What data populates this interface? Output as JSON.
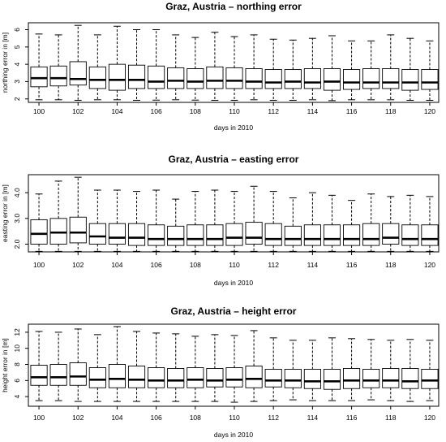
{
  "chart_data": [
    {
      "type": "boxplot",
      "title": "Graz, Austria – northing error",
      "xlabel": "days in 2010",
      "ylabel": "northing error in [m]",
      "ylim": [
        1.8,
        6.4
      ],
      "y_ticks": [
        2,
        3,
        4,
        5,
        6
      ],
      "y_tick_labels": [
        "2",
        "3",
        "4",
        "5",
        "6"
      ],
      "x_tick_labels": [
        "100",
        "102",
        "104",
        "106",
        "108",
        "110",
        "112",
        "114",
        "116",
        "118",
        "120"
      ],
      "categories": [
        100,
        101,
        102,
        103,
        104,
        105,
        106,
        107,
        108,
        109,
        110,
        111,
        112,
        113,
        114,
        115,
        116,
        117,
        118,
        119,
        120
      ],
      "lower_whisker": [
        1.95,
        1.95,
        1.92,
        1.95,
        1.95,
        1.92,
        1.93,
        1.95,
        1.93,
        1.92,
        1.92,
        1.95,
        1.92,
        1.92,
        1.95,
        1.9,
        1.95,
        1.95,
        1.95,
        1.92,
        1.92
      ],
      "q1": [
        2.7,
        2.75,
        2.8,
        2.6,
        2.5,
        2.6,
        2.6,
        2.6,
        2.6,
        2.6,
        2.6,
        2.6,
        2.6,
        2.6,
        2.6,
        2.5,
        2.55,
        2.6,
        2.6,
        2.5,
        2.55
      ],
      "median": [
        3.2,
        3.2,
        3.15,
        3.1,
        3.1,
        3.1,
        3.0,
        3.05,
        3.0,
        3.05,
        3.05,
        3.0,
        2.95,
        3.0,
        2.95,
        3.0,
        2.95,
        2.95,
        2.95,
        2.95,
        2.95
      ],
      "q3": [
        3.85,
        3.9,
        4.15,
        3.85,
        4.0,
        3.95,
        3.9,
        3.8,
        3.75,
        3.85,
        3.8,
        3.75,
        3.7,
        3.7,
        3.75,
        3.75,
        3.7,
        3.75,
        3.75,
        3.7,
        3.7
      ],
      "upper_whisker": [
        5.75,
        5.7,
        6.25,
        5.7,
        6.2,
        6.0,
        6.0,
        5.7,
        5.55,
        5.85,
        5.6,
        5.7,
        5.45,
        5.4,
        5.5,
        5.65,
        5.35,
        5.35,
        5.7,
        5.5,
        5.35
      ]
    },
    {
      "type": "boxplot",
      "title": "Graz, Austria – easting error",
      "xlabel": "days in 2010",
      "ylabel": "easting error in [m]",
      "ylim": [
        1.7,
        4.7
      ],
      "y_ticks": [
        2.0,
        3.0,
        4.0
      ],
      "y_tick_labels": [
        "2.0",
        "3.0",
        "4.0"
      ],
      "x_tick_labels": [
        "100",
        "102",
        "104",
        "106",
        "108",
        "110",
        "112",
        "114",
        "116",
        "118",
        "120"
      ],
      "categories": [
        100,
        101,
        102,
        103,
        104,
        105,
        106,
        107,
        108,
        109,
        110,
        111,
        112,
        113,
        114,
        115,
        116,
        117,
        118,
        119,
        120
      ],
      "lower_whisker": [
        1.72,
        1.72,
        1.72,
        1.72,
        1.72,
        1.72,
        1.72,
        1.72,
        1.72,
        1.72,
        1.72,
        1.72,
        1.72,
        1.72,
        1.72,
        1.72,
        1.72,
        1.72,
        1.72,
        1.72,
        1.72
      ],
      "q1": [
        2.0,
        2.0,
        2.05,
        2.0,
        2.0,
        1.95,
        1.95,
        1.95,
        1.95,
        1.95,
        1.95,
        2.0,
        1.95,
        1.95,
        1.95,
        1.95,
        1.95,
        1.95,
        2.0,
        1.95,
        1.95
      ],
      "median": [
        2.4,
        2.45,
        2.45,
        2.3,
        2.25,
        2.25,
        2.2,
        2.2,
        2.2,
        2.2,
        2.25,
        2.25,
        2.2,
        2.2,
        2.2,
        2.2,
        2.2,
        2.2,
        2.25,
        2.2,
        2.2
      ],
      "q3": [
        2.95,
        3.0,
        3.05,
        2.8,
        2.8,
        2.8,
        2.75,
        2.7,
        2.75,
        2.75,
        2.8,
        2.85,
        2.8,
        2.7,
        2.75,
        2.75,
        2.75,
        2.8,
        2.8,
        2.75,
        2.75
      ],
      "upper_whisker": [
        3.95,
        4.45,
        4.6,
        4.1,
        4.1,
        4.05,
        4.1,
        3.75,
        4.05,
        4.1,
        4.05,
        4.25,
        4.05,
        3.8,
        4.0,
        3.9,
        3.7,
        3.95,
        3.85,
        3.9,
        3.85
      ]
    },
    {
      "type": "boxplot",
      "title": "Graz, Austria – height error",
      "xlabel": "days in 2010",
      "ylabel": "height error in [m]",
      "ylim": [
        2.8,
        13.0
      ],
      "y_ticks": [
        4,
        6,
        8,
        10,
        12
      ],
      "y_tick_labels": [
        "4",
        "6",
        "8",
        "10",
        "12"
      ],
      "x_tick_labels": [
        "100",
        "102",
        "104",
        "106",
        "108",
        "110",
        "112",
        "114",
        "116",
        "118",
        "120"
      ],
      "categories": [
        100,
        101,
        102,
        103,
        104,
        105,
        106,
        107,
        108,
        109,
        110,
        111,
        112,
        113,
        114,
        115,
        116,
        117,
        118,
        119,
        120
      ],
      "lower_whisker": [
        3.5,
        3.5,
        3.4,
        3.4,
        3.4,
        3.4,
        3.4,
        3.4,
        3.4,
        3.4,
        3.3,
        3.4,
        3.5,
        3.6,
        3.5,
        3.5,
        3.5,
        3.6,
        3.5,
        3.4,
        3.5
      ],
      "q1": [
        5.4,
        5.4,
        5.4,
        5.1,
        5.1,
        5.1,
        5.1,
        5.1,
        5.1,
        5.2,
        5.2,
        5.1,
        5.2,
        5.1,
        5.0,
        4.9,
        5.0,
        5.1,
        5.1,
        5.0,
        5.0
      ],
      "median": [
        6.4,
        6.4,
        6.5,
        6.1,
        6.2,
        6.1,
        6.0,
        6.0,
        6.1,
        6.0,
        6.1,
        6.2,
        6.0,
        6.0,
        5.9,
        5.9,
        6.0,
        6.0,
        6.0,
        5.9,
        6.0
      ],
      "q3": [
        7.9,
        8.0,
        8.2,
        7.6,
        8.0,
        7.8,
        7.6,
        7.5,
        7.6,
        7.5,
        7.6,
        7.8,
        7.4,
        7.4,
        7.4,
        7.4,
        7.5,
        7.4,
        7.5,
        7.5,
        7.4
      ],
      "upper_whisker": [
        12.1,
        12.0,
        12.4,
        11.7,
        12.7,
        12.1,
        11.9,
        11.8,
        11.5,
        11.7,
        11.6,
        12.2,
        11.3,
        11.0,
        11.0,
        11.3,
        11.2,
        11.1,
        11.0,
        11.1,
        11.0
      ]
    }
  ]
}
